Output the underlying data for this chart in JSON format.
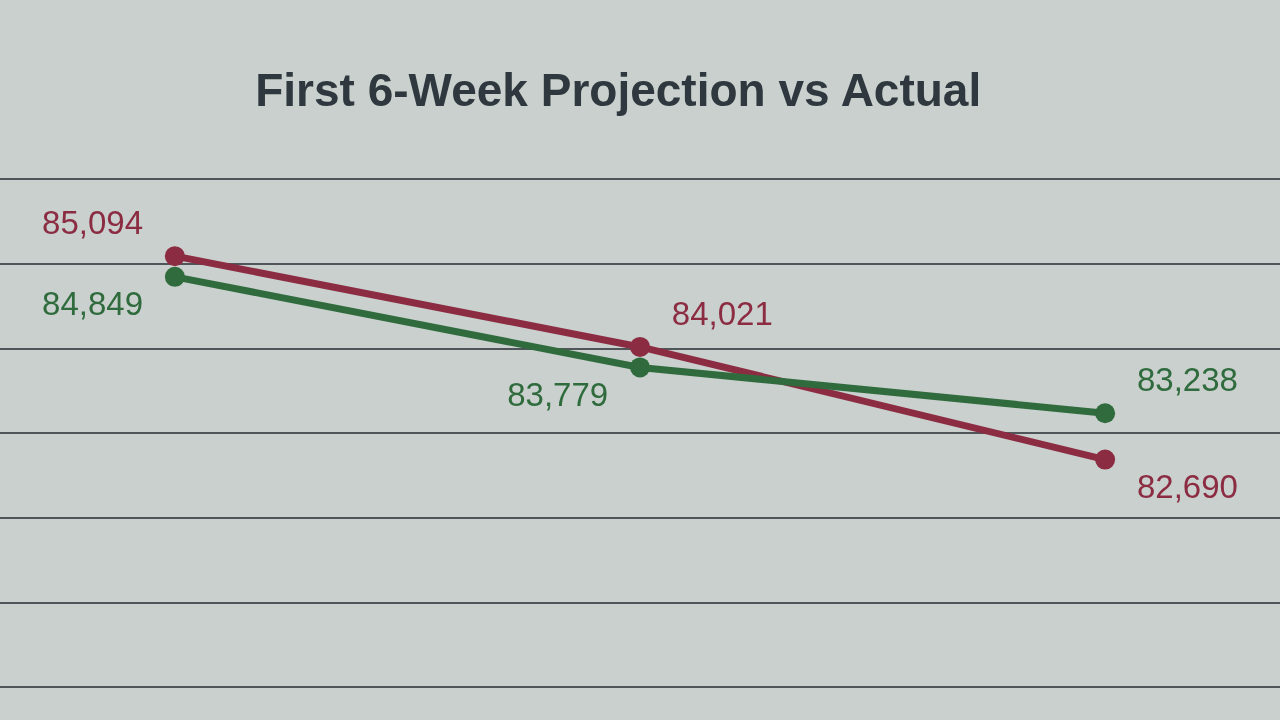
{
  "chart_data": {
    "type": "line",
    "title": "First 6-Week Projection vs Actual",
    "categories": [
      null,
      null,
      null
    ],
    "series": [
      {
        "color": "#8c2c42",
        "values": [
          85094,
          84021,
          82690
        ],
        "value_labels": [
          "85,094",
          "84,021",
          "82,690"
        ]
      },
      {
        "color": "#2f6b3d",
        "values": [
          84849,
          83779,
          83238
        ],
        "value_labels": [
          "84,849",
          "83,779",
          "83,238"
        ]
      }
    ],
    "grid": "y",
    "tick_labels": false,
    "marker": "circle",
    "line_style": "solid"
  }
}
